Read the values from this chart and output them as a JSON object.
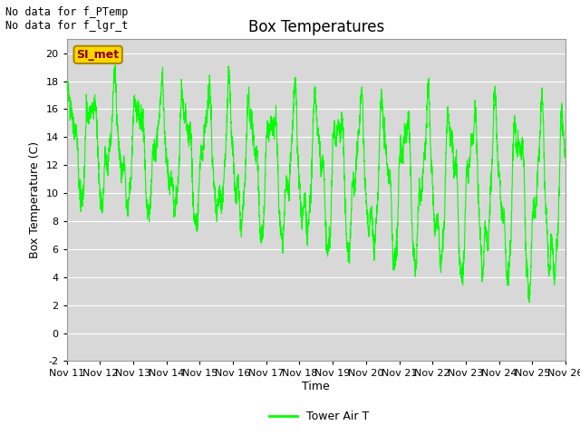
{
  "title": "Box Temperatures",
  "ylabel": "Box Temperature (C)",
  "xlabel": "Time",
  "annotations": [
    "No data for f_PTemp",
    "No data for f_lgr_t"
  ],
  "legend_label": "Tower Air T",
  "line_color": "#00FF00",
  "plot_bg": "#DCDCDC",
  "ylim": [
    -2,
    21
  ],
  "yticks": [
    -2,
    0,
    2,
    4,
    6,
    8,
    10,
    12,
    14,
    16,
    18,
    20
  ],
  "xtick_labels": [
    "Nov 11",
    "Nov 12",
    "Nov 13",
    "Nov 14",
    "Nov 15",
    "Nov 16",
    "Nov 17",
    "Nov 18",
    "Nov 19",
    "Nov 20",
    "Nov 21",
    "Nov 22",
    "Nov 23",
    "Nov 24",
    "Nov 25",
    "Nov 26"
  ],
  "box_label": "SI_met",
  "box_label_color": "#8B0000",
  "box_bg": "#FFD700",
  "title_fontsize": 12,
  "axis_fontsize": 9,
  "tick_fontsize": 8
}
